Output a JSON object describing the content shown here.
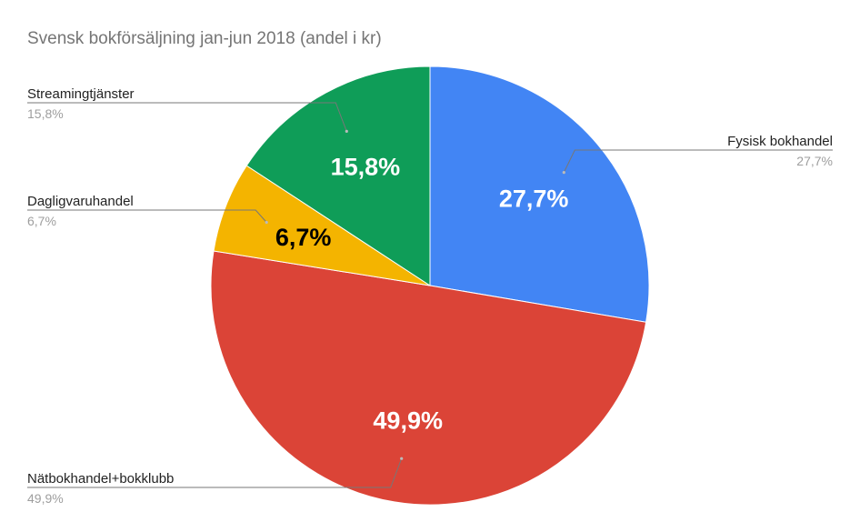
{
  "chart_data": {
    "type": "pie",
    "title": "Svensk bokförsäljning jan-jun 2018 (andel i kr)",
    "slices": [
      {
        "name": "Fysisk bokhandel",
        "value": 27.7,
        "label": "27,7%",
        "color": "#4285f4",
        "label_color": "#ffffff"
      },
      {
        "name": "Nätbokhandel+bokklubb",
        "value": 49.9,
        "label": "49,9%",
        "color": "#db4437",
        "label_color": "#ffffff"
      },
      {
        "name": "Dagligvaruhandel",
        "value": 6.7,
        "label": "6,7%",
        "color": "#f4b400",
        "label_color": "#000000"
      },
      {
        "name": "Streamingtjänster",
        "value": 15.8,
        "label": "15,8%",
        "color": "#0f9d58",
        "label_color": "#ffffff"
      }
    ]
  }
}
